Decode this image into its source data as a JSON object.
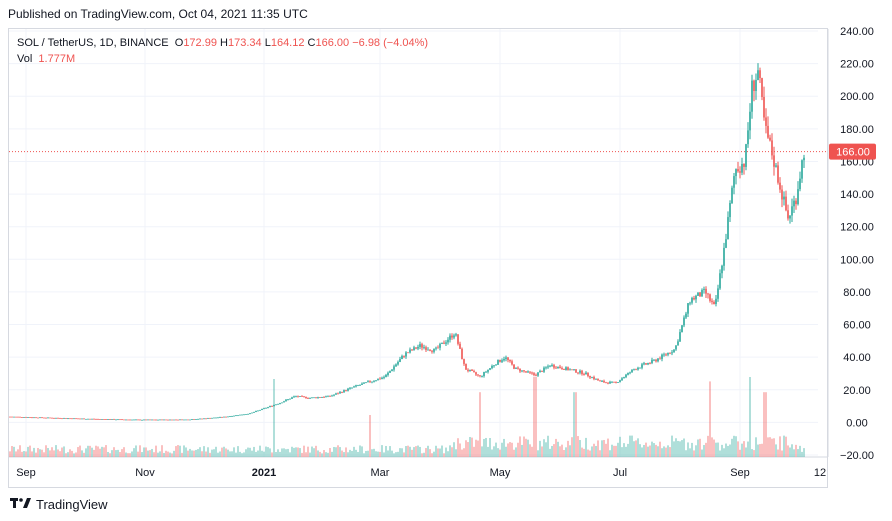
{
  "header": {
    "published": "Published on TradingView.com, Oct 04, 2021 11:35 UTC"
  },
  "legend": {
    "symbol": "SOL / TetherUS, 1D, BINANCE",
    "o_label": "O",
    "o": "172.99",
    "h_label": "H",
    "h": "173.34",
    "l_label": "L",
    "l": "164.12",
    "c_label": "C",
    "c": "166.00",
    "change": "−6.98 (−4.04%)",
    "vol_label": "Vol",
    "vol": "1.777M"
  },
  "footer": {
    "brand": "TradingView",
    "logo": "tv-logo-icon"
  },
  "colors": {
    "up": "#26a69a",
    "down": "#ef5350",
    "grid": "#f0f3fa",
    "price_line": "#ef5350"
  },
  "chart_data": {
    "type": "candlestick",
    "x_ticks": [
      "Sep",
      "Nov",
      "2021",
      "Mar",
      "May",
      "Jul",
      "Sep",
      "12"
    ],
    "y_ticks": [
      "240.00",
      "220.00",
      "200.00",
      "180.00",
      "160.00",
      "140.00",
      "120.00",
      "100.00",
      "80.00",
      "60.00",
      "40.00",
      "20.00",
      "0.00",
      "−20.00"
    ],
    "ylim": [
      -20,
      240
    ],
    "last_price_label": "166.00",
    "last_price": 166.0,
    "x": [
      "Sep 2020",
      "Oct 2020",
      "Nov 2020",
      "Dec 2020",
      "Jan 2021",
      "Feb 2021",
      "Mar 2021",
      "Apr 2021",
      "May 2021",
      "Jun 2021",
      "Jul 2021",
      "Aug 2021",
      "Sep 2021",
      "Oct 2021"
    ],
    "close": [
      3.2,
      2.4,
      2.0,
      1.6,
      3.8,
      12,
      15,
      25,
      44,
      34,
      30,
      38,
      150,
      166
    ]
  }
}
